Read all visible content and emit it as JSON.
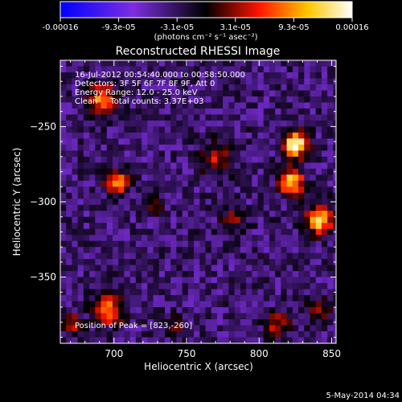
{
  "colorbar": {
    "tick_labels": [
      "-0.00016",
      "-9.3e-05",
      "-3.1e-05",
      "3.1e-05",
      "9.3e-05",
      "0.00016"
    ],
    "unit_label": "(photons cm⁻² s⁻¹ asec⁻²)",
    "range": [
      -0.00016,
      0.00016
    ]
  },
  "plot": {
    "title": "Reconstructed RHESSI Image",
    "overlay_lines": [
      "16-Jul-2012 00:54:40.000 to 00:58:50.000",
      "Detectors: 3F 5F 6F 7F 8F 9F, Att 0",
      "Energy Range: 12.0 - 25.0 keV",
      "Clean     Total counts: 3.37E+03"
    ],
    "peak_label": "Position of Peak = [823,-260]",
    "footer_date": "5-May-2014 04:34"
  },
  "chart_data": {
    "type": "heatmap",
    "title": "Reconstructed RHESSI Image",
    "xlabel": "Heliocentric X (arcsec)",
    "ylabel": "Heliocentric Y (arcsec)",
    "xlim": [
      663,
      853
    ],
    "ylim": [
      -394,
      -206
    ],
    "x_ticks": [
      700,
      750,
      800,
      850
    ],
    "x_tick_labels": [
      "700",
      "750",
      "800",
      "850"
    ],
    "y_ticks": [
      -250,
      -300,
      -350
    ],
    "y_tick_labels": [
      "−250",
      "−300",
      "−350"
    ],
    "grid": false,
    "colormap": [
      "#0000ff",
      "#7d2ee0",
      "#000000",
      "#ff1400",
      "#ffc800",
      "#ffffff"
    ],
    "peak_position": [
      823,
      -260
    ],
    "cell_size_arcsec": 4,
    "background_value": -4e-05,
    "sources": [
      {
        "x": 823,
        "y": -260,
        "sigma": 6,
        "amp": 0.0002
      },
      {
        "x": 820,
        "y": -285,
        "sigma": 6,
        "amp": 0.00017
      },
      {
        "x": 840,
        "y": -310,
        "sigma": 7,
        "amp": 0.00016
      },
      {
        "x": 700,
        "y": -285,
        "sigma": 6,
        "amp": 0.00012
      },
      {
        "x": 690,
        "y": -230,
        "sigma": 7,
        "amp": 0.00013
      },
      {
        "x": 695,
        "y": -370,
        "sigma": 7,
        "amp": 0.00013
      },
      {
        "x": 770,
        "y": -270,
        "sigma": 8,
        "amp": 8e-05
      },
      {
        "x": 780,
        "y": -310,
        "sigma": 6,
        "amp": 6e-05
      },
      {
        "x": 810,
        "y": -380,
        "sigma": 6,
        "amp": 9e-05
      },
      {
        "x": 840,
        "y": -370,
        "sigma": 6,
        "amp": 7e-05
      },
      {
        "x": 740,
        "y": -380,
        "sigma": 5,
        "amp": 6e-05
      },
      {
        "x": 670,
        "y": -380,
        "sigma": 5,
        "amp": 9e-05
      },
      {
        "x": 725,
        "y": -300,
        "sigma": 5,
        "amp": 5e-05
      }
    ]
  }
}
